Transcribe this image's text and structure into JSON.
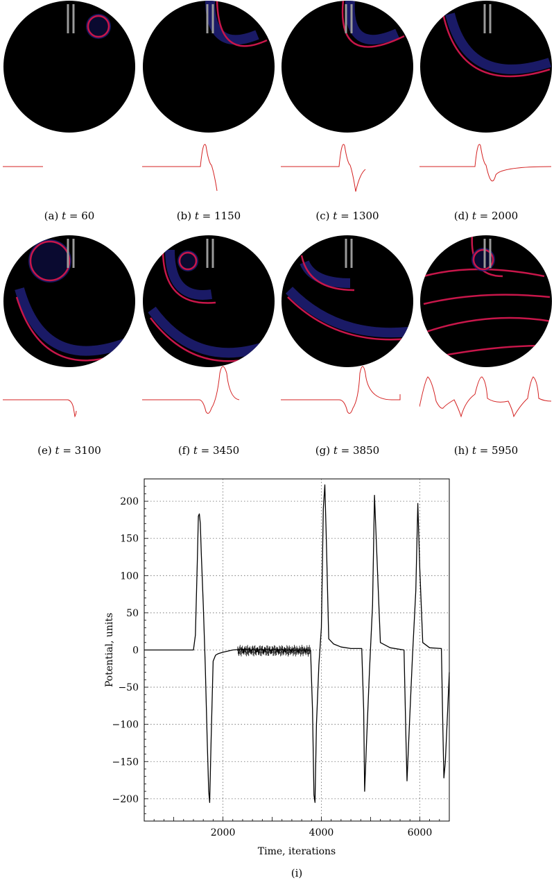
{
  "panels": [
    {
      "label": "(a)",
      "t": "60"
    },
    {
      "label": "(b)",
      "t": "1150"
    },
    {
      "label": "(c)",
      "t": "1300"
    },
    {
      "label": "(d)",
      "t": "2000"
    },
    {
      "label": "(e)",
      "t": "3100"
    },
    {
      "label": "(f)",
      "t": "3450"
    },
    {
      "label": "(g)",
      "t": "3850"
    },
    {
      "label": "(h)",
      "t": "5950"
    }
  ],
  "time_symbol": "t",
  "colors": {
    "disk": "#000000",
    "wavefront": "#c8164a",
    "wave_tail": "#1e1e78",
    "electrode": "#9a9a9a",
    "trace_small": "#d42020",
    "trace_main": "#000000"
  },
  "chart_data": {
    "type": "line",
    "label": "(i)",
    "xlabel": "Time, iterations",
    "ylabel": "Potential, units",
    "xlim": [
      400,
      6600
    ],
    "ylim": [
      -230,
      230
    ],
    "xticks": [
      2000,
      4000,
      6000
    ],
    "yticks": [
      -200,
      -150,
      -100,
      -50,
      0,
      50,
      100,
      150,
      200
    ],
    "grid": true,
    "series": [
      {
        "x": [
          400,
          1000,
          1400,
          1440,
          1480,
          1500,
          1520,
          1540,
          1560,
          1600,
          1640,
          1680,
          1710,
          1730,
          1760,
          1800,
          1850,
          1900,
          2000,
          2200,
          2400,
          2600,
          3000,
          3400,
          3780,
          3820,
          3850,
          3870,
          3900,
          3950,
          4000,
          4040,
          4070,
          4100,
          4150,
          4250,
          4400,
          4600,
          4820,
          4860,
          4880,
          4920,
          4980,
          5040,
          5080,
          5120,
          5200,
          5400,
          5680,
          5720,
          5740,
          5790,
          5850,
          5920,
          5960,
          6000,
          6060,
          6200,
          6440,
          6470,
          6490,
          6520,
          6560,
          6600
        ],
        "y": [
          0,
          0,
          0,
          20,
          120,
          180,
          183,
          170,
          130,
          60,
          -20,
          -120,
          -190,
          -205,
          -120,
          -15,
          -7,
          -5,
          -3,
          0,
          1,
          0,
          0,
          0,
          0,
          -80,
          -195,
          -205,
          -100,
          -20,
          30,
          190,
          222,
          150,
          15,
          8,
          4,
          2,
          2,
          -80,
          -190,
          -120,
          -25,
          60,
          208,
          140,
          10,
          3,
          0,
          -120,
          -176,
          -100,
          -10,
          80,
          197,
          110,
          10,
          3,
          2,
          -110,
          -172,
          -150,
          -90,
          -30
        ]
      }
    ]
  }
}
